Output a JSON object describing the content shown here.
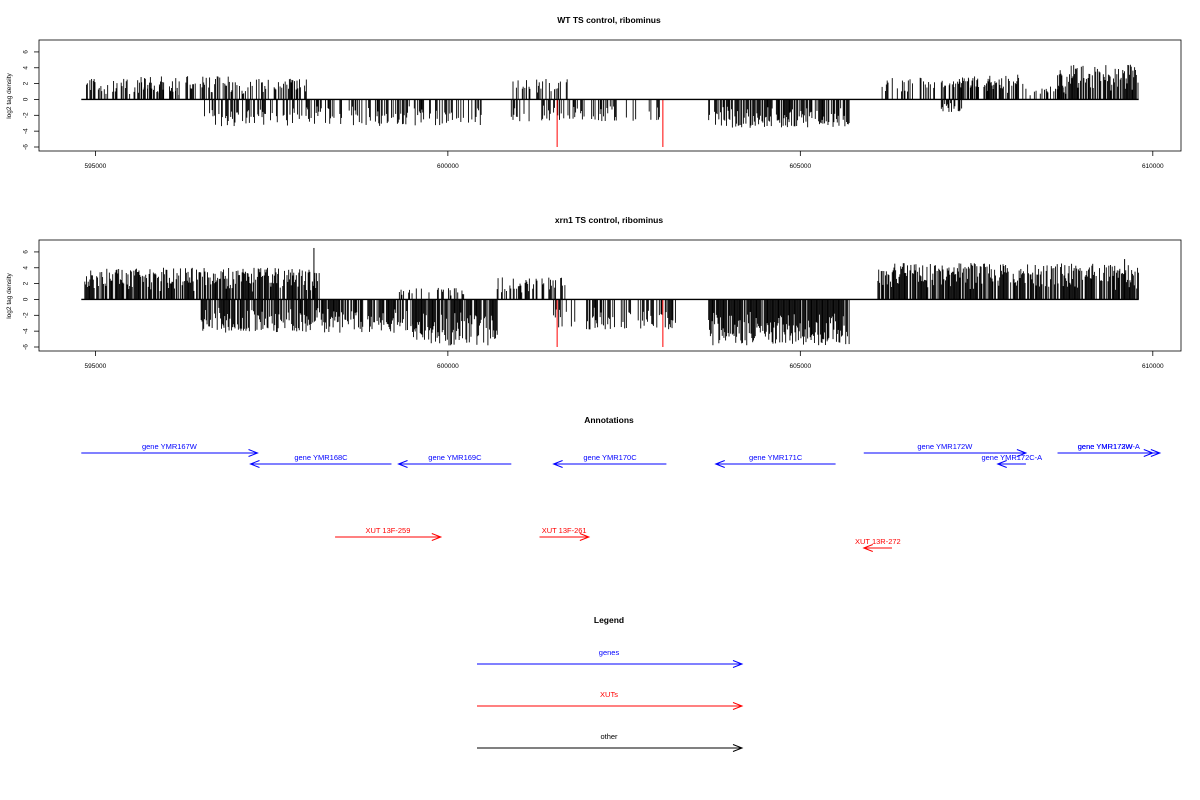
{
  "colors": {
    "gene": "#0000FF",
    "xut": "#FF0000",
    "other": "#000000",
    "highlight": "#FF0000",
    "signal": "#000000"
  },
  "chart_data": [
    {
      "type": "bar",
      "title": "WT TS control, ribominus",
      "ylabel": "log2 tag density",
      "xlim": [
        594200,
        610400
      ],
      "ylim": [
        -6,
        7
      ],
      "x_ticks": [
        595000,
        600000,
        605000,
        610000
      ],
      "y_ticks": [
        6,
        4,
        2,
        0,
        -2,
        -4,
        -6
      ],
      "x_tick_labels": [
        "595000",
        "600000",
        "605000",
        "610000"
      ],
      "y_tick_labels": [
        "6",
        "4",
        "2",
        "0",
        "-2",
        "-4",
        "-6"
      ],
      "baseline_span": [
        594800,
        609800
      ],
      "highlight_x": [
        601550,
        603050
      ],
      "highlight_value": -6,
      "segments": [
        {
          "range": [
            594850,
            595500
          ],
          "sign": "+",
          "max": 2.6,
          "density": 0.55,
          "seed": 1
        },
        {
          "range": [
            595500,
            596200
          ],
          "sign": "+",
          "max": 2.2,
          "density": 0.35,
          "seed": 2
        },
        {
          "range": [
            595600,
            596900
          ],
          "sign": "+",
          "max": 3.0,
          "density": 0.45,
          "seed": 3
        },
        {
          "range": [
            596900,
            598000
          ],
          "sign": "+",
          "max": 2.6,
          "density": 0.45,
          "seed": 4
        },
        {
          "range": [
            596500,
            600500
          ],
          "sign": "-",
          "max": 3.4,
          "density": 0.45,
          "seed": 5
        },
        {
          "range": [
            600900,
            601700
          ],
          "sign": "+",
          "max": 2.6,
          "density": 0.5,
          "seed": 6
        },
        {
          "range": [
            600900,
            603000
          ],
          "sign": "-",
          "max": 2.8,
          "density": 0.35,
          "seed": 7
        },
        {
          "range": [
            603700,
            605700
          ],
          "sign": "-",
          "max": 3.6,
          "density": 0.7,
          "seed": 8
        },
        {
          "range": [
            606100,
            607800
          ],
          "sign": "+",
          "max": 2.8,
          "density": 0.35,
          "seed": 9
        },
        {
          "range": [
            607100,
            608200
          ],
          "sign": "+",
          "max": 3.2,
          "density": 0.5,
          "seed": 10
        },
        {
          "range": [
            608200,
            608800
          ],
          "sign": "+",
          "max": 1.8,
          "density": 0.35,
          "seed": 11
        },
        {
          "range": [
            608650,
            609800
          ],
          "sign": "+",
          "max": 4.4,
          "density": 0.75,
          "seed": 12
        },
        {
          "range": [
            607000,
            607300
          ],
          "sign": "-",
          "max": 1.6,
          "density": 0.5,
          "seed": 13
        }
      ]
    },
    {
      "type": "bar",
      "title": "xrn1 TS control, ribominus",
      "ylabel": "log2 tag density",
      "xlim": [
        594200,
        610400
      ],
      "ylim": [
        -6,
        7
      ],
      "x_ticks": [
        595000,
        600000,
        605000,
        610000
      ],
      "y_ticks": [
        6,
        4,
        2,
        0,
        -2,
        -4,
        -6
      ],
      "x_tick_labels": [
        "595000",
        "600000",
        "605000",
        "610000"
      ],
      "y_tick_labels": [
        "6",
        "4",
        "2",
        "0",
        "-2",
        "-4",
        "-6"
      ],
      "baseline_span": [
        594800,
        609800
      ],
      "highlight_x": [
        601550,
        603050
      ],
      "highlight_value": -6,
      "segments": [
        {
          "range": [
            594850,
            598200
          ],
          "sign": "+",
          "max": 4.0,
          "density": 0.8,
          "seed": 21
        },
        {
          "range": [
            596500,
            599500
          ],
          "sign": "-",
          "max": 4.2,
          "density": 0.75,
          "seed": 22
        },
        {
          "range": [
            599500,
            600700
          ],
          "sign": "-",
          "max": 5.8,
          "density": 0.9,
          "seed": 23
        },
        {
          "range": [
            600700,
            601700
          ],
          "sign": "+",
          "max": 2.8,
          "density": 0.45,
          "seed": 24
        },
        {
          "range": [
            601500,
            603300
          ],
          "sign": "-",
          "max": 3.8,
          "density": 0.4,
          "seed": 25
        },
        {
          "range": [
            603700,
            605700
          ],
          "sign": "-",
          "max": 5.8,
          "density": 0.95,
          "seed": 26
        },
        {
          "range": [
            606100,
            609800
          ],
          "sign": "+",
          "max": 4.6,
          "density": 0.8,
          "seed": 27
        },
        {
          "range": [
            599300,
            600300
          ],
          "sign": "+",
          "max": 1.5,
          "density": 0.3,
          "seed": 28
        }
      ],
      "peaks": [
        {
          "x": 598100,
          "value": 6.5
        },
        {
          "x": 609600,
          "value": 5.1
        }
      ]
    }
  ],
  "annotations": {
    "title": "Annotations",
    "genes": [
      {
        "label": "gene YMR167W",
        "x1": 594800,
        "x2": 597300,
        "row": 1,
        "strand": "+"
      },
      {
        "label": "gene YMR168C",
        "x1": 597200,
        "x2": 599200,
        "row": 2,
        "strand": "-"
      },
      {
        "label": "gene YMR169C",
        "x1": 599300,
        "x2": 600900,
        "row": 2,
        "strand": "-"
      },
      {
        "label": "gene YMR170C",
        "x1": 601500,
        "x2": 603100,
        "row": 2,
        "strand": "-"
      },
      {
        "label": "gene YMR171C",
        "x1": 603800,
        "x2": 605500,
        "row": 2,
        "strand": "-"
      },
      {
        "label": "gene YMR172W",
        "x1": 605900,
        "x2": 608200,
        "row": 1,
        "strand": "+"
      },
      {
        "label": "gene YMR172C-A",
        "x1": 607800,
        "x2": 608200,
        "row": 2,
        "strand": "-"
      },
      {
        "label": "gene YMR172W-A",
        "x1": 608650,
        "x2": 610100,
        "row": 1,
        "strand": "+"
      },
      {
        "label": "gene YMR173W",
        "x1": 608650,
        "x2": 610000,
        "row": 1,
        "strand": "+"
      }
    ],
    "xuts": [
      {
        "label": "XUT 13F-259",
        "x1": 598400,
        "x2": 599900,
        "row": 4,
        "strand": "+"
      },
      {
        "label": "XUT 13F-261",
        "x1": 601300,
        "x2": 602000,
        "row": 4,
        "strand": "+"
      },
      {
        "label": "XUT 13R-272",
        "x1": 605900,
        "x2": 606300,
        "row": 5,
        "strand": "-"
      }
    ]
  },
  "legend": {
    "title": "Legend",
    "items": [
      {
        "label": "genes",
        "kind": "gene"
      },
      {
        "label": "XUTs",
        "kind": "xut"
      },
      {
        "label": "other",
        "kind": "other"
      }
    ]
  }
}
